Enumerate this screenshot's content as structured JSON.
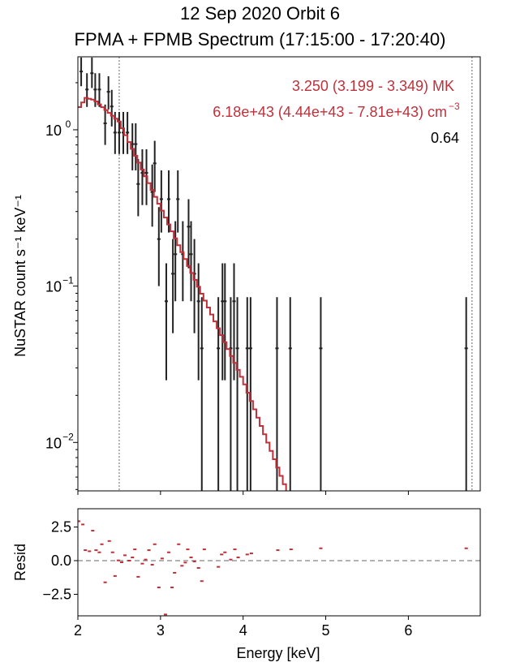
{
  "chart_data": [
    {
      "type": "scatter",
      "title_line1": "12 Sep 2020 Orbit 6",
      "title_line2": "FPMA + FPMB Spectrum (17:15:00 - 17:20:40)",
      "xlabel": "",
      "ylabel": "NuSTAR count s⁻¹ keV⁻¹",
      "yscale": "log",
      "xlim": [
        2.0,
        6.87
      ],
      "ylim": [
        0.0049,
        2.93
      ],
      "ytick_labels": [
        {
          "value": 1,
          "label": "10",
          "exp": "0"
        },
        {
          "value": 0.1,
          "label": "10",
          "exp": "−1"
        },
        {
          "value": 0.01,
          "label": "10",
          "exp": "−2"
        }
      ],
      "fit_range_lines": [
        2.5,
        6.77
      ],
      "annotations": {
        "temperature": "3.250 (3.199 - 3.349) MK",
        "emission_measure": "6.18e+43 (4.44e+43 - 7.81e+43) cm",
        "emission_measure_exp": "−3",
        "statistic": "0.64"
      },
      "colors": {
        "data": "#222222",
        "model": "#c0303a",
        "annotation": "#c0303a",
        "guide": "#999999"
      },
      "data": [
        [
          2.04,
          2.36,
          1.9,
          2.9
        ],
        [
          2.17,
          2.3,
          1.85,
          2.9
        ],
        [
          2.11,
          1.81,
          1.4,
          2.3
        ],
        [
          2.21,
          1.81,
          1.4,
          2.3
        ],
        [
          2.26,
          1.81,
          1.4,
          2.3
        ],
        [
          2.37,
          1.75,
          1.35,
          2.2
        ],
        [
          2.33,
          1.1,
          0.8,
          1.45
        ],
        [
          2.41,
          1.41,
          1.05,
          1.8
        ],
        [
          2.45,
          0.96,
          0.7,
          1.3
        ],
        [
          2.5,
          0.96,
          0.7,
          1.3
        ],
        [
          2.55,
          0.96,
          0.7,
          1.3
        ],
        [
          2.6,
          0.96,
          0.7,
          1.3
        ],
        [
          2.66,
          0.81,
          0.55,
          1.1
        ],
        [
          2.7,
          0.81,
          0.55,
          1.1
        ],
        [
          2.73,
          0.45,
          0.28,
          0.65
        ],
        [
          2.78,
          0.53,
          0.33,
          0.75
        ],
        [
          2.83,
          0.53,
          0.33,
          0.75
        ],
        [
          2.9,
          0.4,
          0.24,
          0.6
        ],
        [
          2.93,
          0.61,
          0.4,
          0.85
        ],
        [
          2.98,
          0.2,
          0.1,
          0.32
        ],
        [
          3.01,
          0.36,
          0.22,
          0.55
        ],
        [
          3.1,
          0.36,
          0.22,
          0.55
        ],
        [
          3.15,
          0.12,
          0.05,
          0.2
        ],
        [
          3.18,
          0.16,
          0.08,
          0.26
        ],
        [
          3.21,
          0.36,
          0.22,
          0.55
        ],
        [
          3.27,
          0.16,
          0.08,
          0.26
        ],
        [
          3.34,
          0.24,
          0.13,
          0.36
        ],
        [
          3.37,
          0.16,
          0.08,
          0.26
        ],
        [
          3.41,
          0.12,
          0.05,
          0.2
        ],
        [
          3.07,
          0.08,
          0.025,
          0.14
        ],
        [
          3.46,
          0.08,
          0.025,
          0.14
        ],
        [
          3.5,
          0.04,
          0.001,
          0.085
        ],
        [
          3.7,
          0.04,
          0.001,
          0.085
        ],
        [
          3.75,
          0.08,
          0.025,
          0.14
        ],
        [
          3.78,
          0.08,
          0.025,
          0.14
        ],
        [
          3.85,
          0.04,
          0.001,
          0.085
        ],
        [
          3.89,
          0.08,
          0.025,
          0.14
        ],
        [
          3.93,
          0.04,
          0.001,
          0.085
        ],
        [
          4.05,
          0.04,
          0.001,
          0.085
        ],
        [
          4.09,
          0.04,
          0.001,
          0.085
        ],
        [
          4.41,
          0.04,
          0.001,
          0.085
        ],
        [
          4.57,
          0.04,
          0.001,
          0.085
        ],
        [
          4.94,
          0.04,
          0.001,
          0.085
        ],
        [
          6.7,
          0.04,
          0.001,
          0.085
        ]
      ],
      "model_knots": [
        [
          2.0,
          1.35
        ],
        [
          2.1,
          1.6
        ],
        [
          2.2,
          1.55
        ],
        [
          2.5,
          1.13
        ],
        [
          3.0,
          0.32
        ],
        [
          4.0,
          0.025
        ],
        [
          4.56,
          0.0045
        ]
      ]
    },
    {
      "type": "scatter",
      "xlabel": "Energy [keV]",
      "ylabel": "Resid",
      "xlim": [
        2.0,
        6.87
      ],
      "ylim": [
        -4.1,
        3.86
      ],
      "xticks": [
        2,
        3,
        4,
        5,
        6
      ],
      "xtick_labels": [
        "2",
        "3",
        "4",
        "5",
        "6"
      ],
      "yticks": [
        2.5,
        0.0,
        -2.5
      ],
      "ytick_labels": [
        "2.5",
        "0.0",
        "−2.5"
      ],
      "zero_line": 0,
      "residuals": [
        [
          2.01,
          2.93
        ],
        [
          2.06,
          2.69
        ],
        [
          2.09,
          0.78
        ],
        [
          2.14,
          0.7
        ],
        [
          2.18,
          2.23
        ],
        [
          2.22,
          0.78
        ],
        [
          2.26,
          0.62
        ],
        [
          2.29,
          1.22
        ],
        [
          2.33,
          -1.61
        ],
        [
          2.38,
          1.46
        ],
        [
          2.42,
          0.62
        ],
        [
          2.45,
          -1.14
        ],
        [
          2.49,
          0.02
        ],
        [
          2.53,
          -0.12
        ],
        [
          2.57,
          0.4
        ],
        [
          2.62,
          0.0
        ],
        [
          2.66,
          0.24
        ],
        [
          2.69,
          0.84
        ],
        [
          2.73,
          -1.2
        ],
        [
          2.78,
          -0.22
        ],
        [
          2.82,
          0.08
        ],
        [
          2.86,
          0.78
        ],
        [
          2.9,
          -0.3
        ],
        [
          2.93,
          1.22
        ],
        [
          2.98,
          -1.99
        ],
        [
          3.02,
          0.16
        ],
        [
          3.06,
          -4.0
        ],
        [
          3.1,
          0.62
        ],
        [
          3.14,
          -1.99
        ],
        [
          3.17,
          -0.9
        ],
        [
          3.22,
          1.22
        ],
        [
          3.26,
          -0.38
        ],
        [
          3.3,
          -0.14
        ],
        [
          3.33,
          0.84
        ],
        [
          3.37,
          0.24
        ],
        [
          3.41,
          -0.06
        ],
        [
          3.46,
          -0.54
        ],
        [
          3.5,
          -1.52
        ],
        [
          3.53,
          0.84
        ],
        [
          3.7,
          -0.46
        ],
        [
          3.74,
          0.46
        ],
        [
          3.78,
          0.62
        ],
        [
          3.85,
          0.08
        ],
        [
          3.9,
          0.84
        ],
        [
          3.94,
          0.24
        ],
        [
          4.05,
          0.46
        ],
        [
          4.1,
          0.54
        ],
        [
          4.42,
          0.78
        ],
        [
          4.58,
          0.84
        ],
        [
          4.94,
          0.92
        ],
        [
          6.7,
          0.92
        ]
      ]
    }
  ]
}
